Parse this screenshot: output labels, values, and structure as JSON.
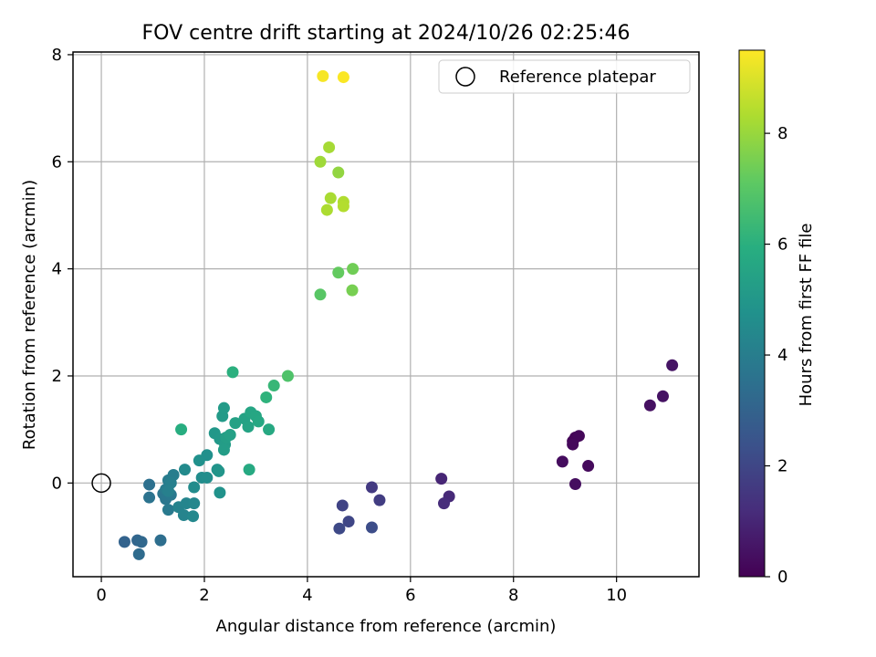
{
  "chart_data": {
    "type": "scatter",
    "title": "FOV centre drift starting at 2024/10/26 02:25:46",
    "xlabel": "Angular distance from reference (arcmin)",
    "ylabel": "Rotation from reference (arcmin)",
    "xlim": [
      -0.55,
      11.6
    ],
    "ylim": [
      -1.75,
      8.05
    ],
    "xticks": [
      0,
      2,
      4,
      6,
      8,
      10
    ],
    "yticks": [
      0,
      2,
      4,
      6,
      8
    ],
    "grid": true,
    "legend": {
      "placement": "top-right",
      "entries": [
        "Reference platepar"
      ]
    },
    "reference_point": {
      "x": 0,
      "y": 0,
      "label": "Reference platepar"
    },
    "colorbar": {
      "label": "Hours from first FF file",
      "range": [
        0,
        9.5
      ],
      "ticks": [
        0,
        2,
        4,
        6,
        8
      ],
      "colormap": "viridis"
    },
    "points": [
      {
        "x": 9.2,
        "y": 0.85,
        "hours": 0.05
      },
      {
        "x": 9.15,
        "y": 0.78,
        "hours": 0.1
      },
      {
        "x": 9.27,
        "y": 0.88,
        "hours": 0.15
      },
      {
        "x": 9.15,
        "y": 0.72,
        "hours": 0.2
      },
      {
        "x": 9.45,
        "y": 0.32,
        "hours": 0.25
      },
      {
        "x": 8.95,
        "y": 0.4,
        "hours": 0.3
      },
      {
        "x": 9.2,
        "y": -0.02,
        "hours": 0.35
      },
      {
        "x": 10.65,
        "y": 1.45,
        "hours": 0.4
      },
      {
        "x": 10.9,
        "y": 1.62,
        "hours": 0.45
      },
      {
        "x": 11.08,
        "y": 2.2,
        "hours": 0.5
      },
      {
        "x": 6.6,
        "y": 0.08,
        "hours": 1.0
      },
      {
        "x": 6.75,
        "y": -0.25,
        "hours": 1.1
      },
      {
        "x": 6.65,
        "y": -0.38,
        "hours": 1.2
      },
      {
        "x": 5.25,
        "y": -0.08,
        "hours": 1.6
      },
      {
        "x": 5.4,
        "y": -0.32,
        "hours": 1.7
      },
      {
        "x": 4.68,
        "y": -0.42,
        "hours": 1.9
      },
      {
        "x": 4.8,
        "y": -0.72,
        "hours": 2.0
      },
      {
        "x": 4.62,
        "y": -0.85,
        "hours": 2.1
      },
      {
        "x": 5.25,
        "y": -0.83,
        "hours": 2.2
      },
      {
        "x": 0.45,
        "y": -1.1,
        "hours": 3.0
      },
      {
        "x": 0.7,
        "y": -1.07,
        "hours": 3.1
      },
      {
        "x": 0.78,
        "y": -1.1,
        "hours": 3.2
      },
      {
        "x": 0.73,
        "y": -1.33,
        "hours": 3.3
      },
      {
        "x": 1.15,
        "y": -1.07,
        "hours": 3.4
      },
      {
        "x": 0.93,
        "y": -0.03,
        "hours": 3.5
      },
      {
        "x": 0.93,
        "y": -0.27,
        "hours": 3.6
      },
      {
        "x": 1.2,
        "y": -0.2,
        "hours": 3.7
      },
      {
        "x": 1.25,
        "y": -0.3,
        "hours": 3.75
      },
      {
        "x": 1.35,
        "y": -0.22,
        "hours": 3.8
      },
      {
        "x": 1.3,
        "y": -0.5,
        "hours": 3.85
      },
      {
        "x": 1.25,
        "y": -0.12,
        "hours": 3.9
      },
      {
        "x": 1.3,
        "y": 0.05,
        "hours": 3.95
      },
      {
        "x": 1.4,
        "y": 0.15,
        "hours": 4.0
      },
      {
        "x": 1.35,
        "y": 0.0,
        "hours": 4.05
      },
      {
        "x": 1.3,
        "y": -0.15,
        "hours": 4.1
      },
      {
        "x": 1.5,
        "y": -0.45,
        "hours": 4.2
      },
      {
        "x": 1.6,
        "y": -0.6,
        "hours": 4.25
      },
      {
        "x": 1.65,
        "y": -0.38,
        "hours": 4.3
      },
      {
        "x": 1.8,
        "y": -0.38,
        "hours": 4.35
      },
      {
        "x": 1.78,
        "y": -0.62,
        "hours": 4.4
      },
      {
        "x": 1.62,
        "y": 0.25,
        "hours": 4.5
      },
      {
        "x": 1.8,
        "y": -0.08,
        "hours": 4.55
      },
      {
        "x": 1.95,
        "y": 0.1,
        "hours": 4.6
      },
      {
        "x": 2.05,
        "y": 0.1,
        "hours": 4.65
      },
      {
        "x": 2.05,
        "y": 0.52,
        "hours": 4.7
      },
      {
        "x": 1.9,
        "y": 0.42,
        "hours": 4.75
      },
      {
        "x": 2.3,
        "y": -0.18,
        "hours": 4.8
      },
      {
        "x": 2.25,
        "y": 0.25,
        "hours": 4.85
      },
      {
        "x": 2.28,
        "y": 0.22,
        "hours": 4.9
      },
      {
        "x": 2.2,
        "y": 0.93,
        "hours": 5.0
      },
      {
        "x": 2.3,
        "y": 0.82,
        "hours": 5.05
      },
      {
        "x": 2.35,
        "y": 1.25,
        "hours": 5.1
      },
      {
        "x": 2.38,
        "y": 1.4,
        "hours": 5.15
      },
      {
        "x": 2.4,
        "y": 0.72,
        "hours": 5.2
      },
      {
        "x": 2.38,
        "y": 0.62,
        "hours": 5.25
      },
      {
        "x": 2.42,
        "y": 0.85,
        "hours": 5.3
      },
      {
        "x": 2.5,
        "y": 0.9,
        "hours": 5.35
      },
      {
        "x": 2.6,
        "y": 1.12,
        "hours": 5.4
      },
      {
        "x": 2.78,
        "y": 1.2,
        "hours": 5.45
      },
      {
        "x": 2.85,
        "y": 1.05,
        "hours": 5.5
      },
      {
        "x": 2.9,
        "y": 1.32,
        "hours": 5.55
      },
      {
        "x": 3.0,
        "y": 1.25,
        "hours": 5.6
      },
      {
        "x": 3.05,
        "y": 1.15,
        "hours": 5.65
      },
      {
        "x": 3.25,
        "y": 1.0,
        "hours": 5.7
      },
      {
        "x": 2.87,
        "y": 0.25,
        "hours": 5.75
      },
      {
        "x": 1.55,
        "y": 1.0,
        "hours": 5.9
      },
      {
        "x": 2.55,
        "y": 2.07,
        "hours": 6.0
      },
      {
        "x": 3.2,
        "y": 1.6,
        "hours": 6.1
      },
      {
        "x": 3.35,
        "y": 1.82,
        "hours": 6.3
      },
      {
        "x": 3.62,
        "y": 2.0,
        "hours": 6.8
      },
      {
        "x": 4.25,
        "y": 3.52,
        "hours": 7.0
      },
      {
        "x": 4.6,
        "y": 3.93,
        "hours": 7.2
      },
      {
        "x": 4.88,
        "y": 4.0,
        "hours": 7.4
      },
      {
        "x": 4.87,
        "y": 3.6,
        "hours": 7.5
      },
      {
        "x": 4.6,
        "y": 5.8,
        "hours": 7.9
      },
      {
        "x": 4.25,
        "y": 6.0,
        "hours": 8.1
      },
      {
        "x": 4.42,
        "y": 6.27,
        "hours": 8.2
      },
      {
        "x": 4.45,
        "y": 5.32,
        "hours": 8.25
      },
      {
        "x": 4.38,
        "y": 5.1,
        "hours": 8.3
      },
      {
        "x": 4.7,
        "y": 5.25,
        "hours": 8.35
      },
      {
        "x": 4.7,
        "y": 5.17,
        "hours": 8.4
      },
      {
        "x": 4.3,
        "y": 7.6,
        "hours": 9.4
      },
      {
        "x": 4.7,
        "y": 7.58,
        "hours": 9.45
      }
    ]
  }
}
